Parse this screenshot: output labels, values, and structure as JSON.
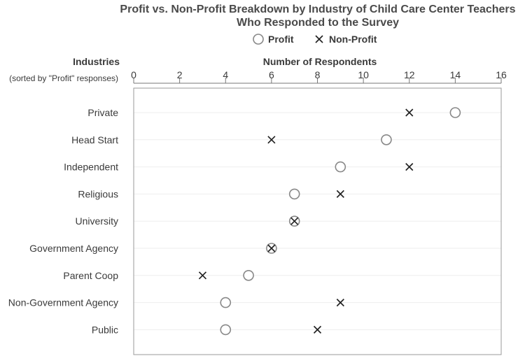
{
  "chart_data": {
    "type": "scatter",
    "title_lines": [
      "Profit vs. Non-Profit Breakdown by Industry of Child Care Center Teachers",
      "Who Responded to the Survey"
    ],
    "xlabel": "Number of Respondents",
    "ylabel": "Industries",
    "ylabel_sub": "(sorted by \"Profit\" responses)",
    "xlim": [
      0,
      16
    ],
    "x_ticks": [
      0,
      2,
      4,
      6,
      8,
      10,
      12,
      14,
      16
    ],
    "grid": "horizontal",
    "legend_position": "top-center",
    "categories": [
      "Private",
      "Head Start",
      "Independent",
      "Religious",
      "University",
      "Government Agency",
      "Parent Coop",
      "Non-Government Agency",
      "Public"
    ],
    "series": [
      {
        "name": "Profit",
        "marker": "circle",
        "color": "#888888",
        "values": [
          14,
          11,
          9,
          7,
          7,
          6,
          5,
          4,
          4
        ]
      },
      {
        "name": "Non-Profit",
        "marker": "x",
        "color": "#222222",
        "values": [
          12,
          6,
          12,
          9,
          7,
          6,
          3,
          9,
          8
        ]
      }
    ]
  }
}
